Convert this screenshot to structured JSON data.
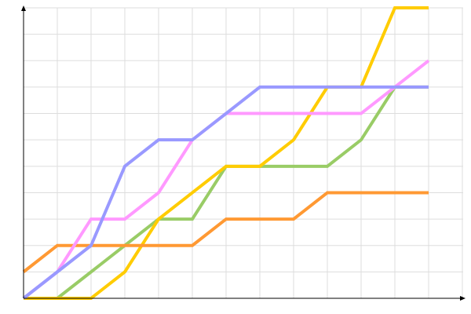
{
  "chart_data": {
    "type": "line",
    "title": "",
    "xlabel": "",
    "ylabel": "",
    "x": [
      0,
      1,
      2,
      3,
      4,
      5,
      6,
      7,
      8,
      9,
      10,
      11,
      12
    ],
    "xlim": [
      0,
      13
    ],
    "ylim": [
      0,
      11
    ],
    "grid": true,
    "legend": "none",
    "series": [
      {
        "color": "#99cc66",
        "values": [
          0,
          0,
          1,
          2,
          3,
          3,
          5,
          5,
          5,
          5,
          6,
          8,
          8
        ]
      },
      {
        "color": "#ffcc00",
        "values": [
          0,
          0,
          0,
          1,
          3,
          4,
          5,
          5,
          6,
          8,
          8,
          11,
          11
        ]
      },
      {
        "color": "#ff9933",
        "values": [
          1,
          2,
          2,
          2,
          2,
          2,
          3,
          3,
          3,
          4,
          4,
          4,
          4
        ]
      },
      {
        "color": "#ff99ff",
        "values": [
          0,
          1,
          3,
          3,
          4,
          6,
          7,
          7,
          7,
          7,
          7,
          8,
          9
        ]
      },
      {
        "color": "#9999ff",
        "values": [
          0,
          1,
          2,
          5,
          6,
          6,
          7,
          8,
          8,
          8,
          8,
          8,
          8
        ]
      }
    ]
  }
}
